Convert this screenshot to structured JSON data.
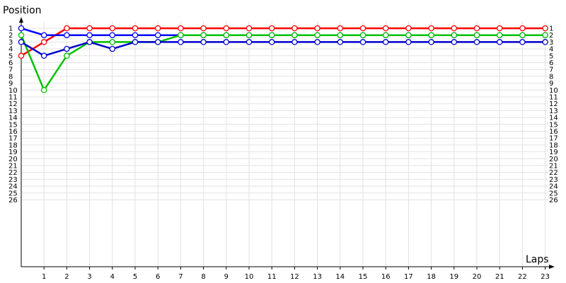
{
  "chart_data": {
    "type": "line",
    "ylabel": "Position",
    "xlabel": "Laps",
    "x_ticks": [
      "1",
      "2",
      "3",
      "4",
      "5",
      "6",
      "7",
      "8",
      "9",
      "10",
      "11",
      "12",
      "13",
      "14",
      "15",
      "16",
      "17",
      "18",
      "19",
      "20",
      "21",
      "22",
      "23"
    ],
    "y_ticks": [
      "1",
      "2",
      "3",
      "4",
      "5",
      "6",
      "7",
      "8",
      "9",
      "10",
      "11",
      "12",
      "13",
      "14",
      "15",
      "16",
      "17",
      "18",
      "19",
      "20",
      "21",
      "22",
      "23",
      "24",
      "25",
      "26"
    ],
    "xlim": [
      0,
      23.5
    ],
    "ylim": [
      1,
      26
    ],
    "y_inverted": true,
    "grid": true,
    "series": [
      {
        "color": "#ff0000",
        "positions": [
          5,
          3,
          1,
          1,
          1,
          1,
          1,
          1,
          1,
          1,
          1,
          1,
          1,
          1,
          1,
          1,
          1,
          1,
          1,
          1,
          1,
          1,
          1,
          1
        ]
      },
      {
        "color": "#0000ff",
        "positions": [
          1,
          2,
          2,
          2,
          2,
          2,
          2,
          2,
          2,
          2,
          2,
          2,
          2,
          2,
          2,
          2,
          2,
          2,
          2,
          2,
          2,
          2,
          2,
          2
        ]
      },
      {
        "color": "#00c000",
        "positions": [
          2,
          10,
          5,
          3,
          3,
          3,
          3,
          2,
          2,
          2,
          2,
          2,
          2,
          2,
          2,
          2,
          2,
          2,
          2,
          2,
          2,
          2,
          2,
          2
        ]
      },
      {
        "color": "#0000cd",
        "positions": [
          3,
          5,
          4,
          3,
          4,
          3,
          3,
          3,
          3,
          3,
          3,
          3,
          3,
          3,
          3,
          3,
          3,
          3,
          3,
          3,
          3,
          3,
          3,
          3
        ]
      }
    ]
  }
}
